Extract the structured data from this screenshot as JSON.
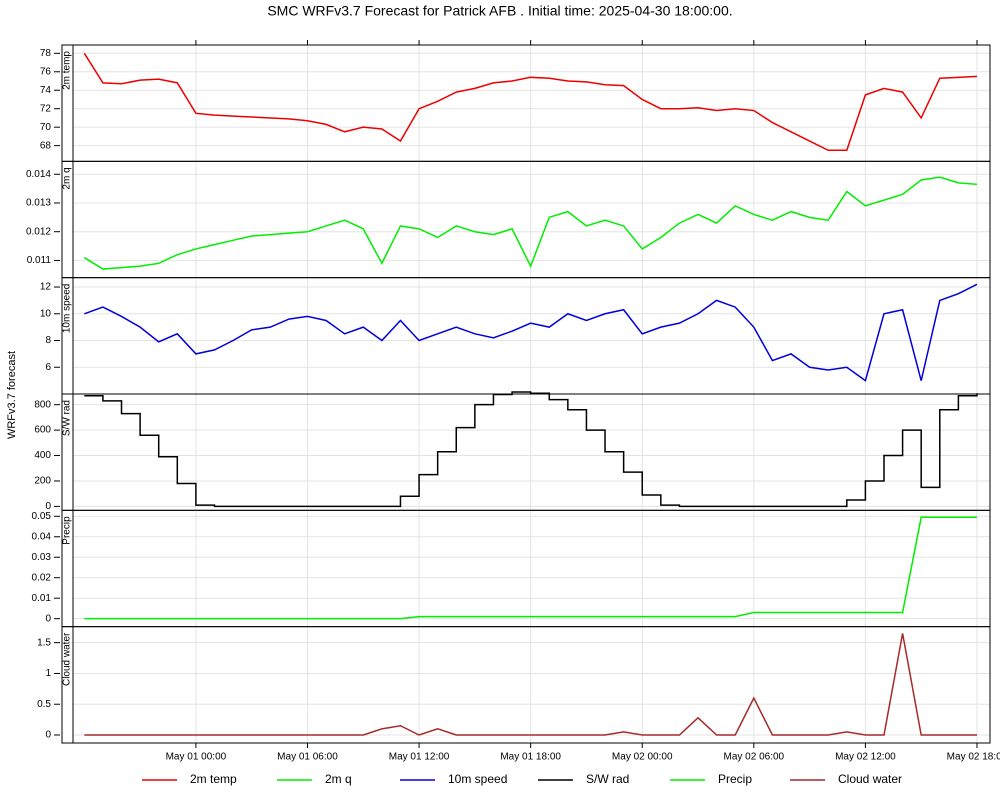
{
  "chart_data": {
    "type": "line",
    "title": "SMC WRFv3.7 Forecast for Patrick AFB            .  Initial time:  2025-04-30 18:00:00.",
    "ylabel": "WRFv3.7 forecast",
    "x": [
      0,
      1,
      2,
      3,
      4,
      5,
      6,
      7,
      8,
      9,
      10,
      11,
      12,
      13,
      14,
      15,
      16,
      17,
      18,
      19,
      20,
      21,
      22,
      23,
      24,
      25,
      26,
      27,
      28,
      29,
      30,
      31,
      32,
      33,
      34,
      35,
      36,
      37,
      38,
      39,
      40,
      41,
      42,
      43,
      44,
      45,
      46,
      47,
      48
    ],
    "xlim": [
      -1.2,
      48.7
    ],
    "xticks": [
      {
        "value": 6,
        "label": "May 01 00:00"
      },
      {
        "value": 12,
        "label": "May 01 06:00"
      },
      {
        "value": 18,
        "label": "May 01 12:00"
      },
      {
        "value": 24,
        "label": "May 01 18:00"
      },
      {
        "value": 30,
        "label": "May 02 00:00"
      },
      {
        "value": 36,
        "label": "May 02 06:00"
      },
      {
        "value": 42,
        "label": "May 02 12:00"
      },
      {
        "value": 48,
        "label": "May 02 18:00"
      }
    ],
    "grid": true,
    "panels": [
      {
        "ylabel": "2m temp",
        "ylim": [
          66.3,
          78.9
        ],
        "yticks": [
          68,
          70,
          72,
          74,
          76,
          78
        ],
        "series": [
          {
            "name": "2m temp",
            "color": "#ee0000",
            "values": [
              78,
              74.8,
              74.7,
              75.1,
              75.2,
              74.8,
              71.5,
              71.3,
              71.2,
              71.1,
              71,
              70.9,
              70.7,
              70.3,
              69.5,
              70,
              69.8,
              68.5,
              72,
              72.8,
              73.8,
              74.2,
              74.8,
              75,
              75.4,
              75.3,
              75,
              74.9,
              74.6,
              74.5,
              73,
              72,
              72,
              72.1,
              71.8,
              72,
              71.8,
              70.5,
              69.5,
              68.5,
              67.5,
              67.5,
              73.5,
              74.2,
              73.8,
              71,
              75.3,
              75.4,
              75.5
            ]
          }
        ]
      },
      {
        "ylabel": "2m q",
        "ylim": [
          0.0104,
          0.01445
        ],
        "yticks": [
          0.011,
          0.012,
          0.013,
          0.014
        ],
        "series": [
          {
            "name": "2m q",
            "color": "#00ee00",
            "values": [
              0.0111,
              0.0107,
              0.01075,
              0.0108,
              0.0109,
              0.0112,
              0.0114,
              0.01155,
              0.0117,
              0.01185,
              0.0119,
              0.01195,
              0.012,
              0.0122,
              0.0124,
              0.0121,
              0.0109,
              0.0122,
              0.0121,
              0.0118,
              0.0122,
              0.012,
              0.0119,
              0.0121,
              0.0108,
              0.0125,
              0.0127,
              0.0122,
              0.0124,
              0.0122,
              0.0114,
              0.0118,
              0.0123,
              0.0126,
              0.0123,
              0.0129,
              0.0126,
              0.0124,
              0.0127,
              0.0125,
              0.0124,
              0.0134,
              0.0129,
              0.0131,
              0.0133,
              0.0138,
              0.0139,
              0.0137,
              0.01365
            ]
          }
        ]
      },
      {
        "ylabel": "10m speed",
        "ylim": [
          4,
          12.7
        ],
        "yticks": [
          6,
          8,
          10,
          12
        ],
        "series": [
          {
            "name": "10m speed",
            "color": "#0000dd",
            "values": [
              10,
              10.5,
              9.8,
              9,
              7.9,
              8.5,
              7,
              7.3,
              8,
              8.8,
              9,
              9.6,
              9.8,
              9.5,
              8.5,
              9,
              8,
              9.5,
              8,
              8.5,
              9,
              8.5,
              8.2,
              8.7,
              9.3,
              9,
              10,
              9.5,
              10,
              10.3,
              8.5,
              9,
              9.3,
              10,
              11,
              10.5,
              9,
              6.5,
              7,
              6,
              5.8,
              6,
              5,
              10,
              10.3,
              5,
              11,
              11.5,
              12.2
            ]
          }
        ]
      },
      {
        "ylabel": "S/W rad",
        "ylim": [
          -31,
          884
        ],
        "yticks": [
          0,
          200,
          400,
          600,
          800
        ],
        "series": [
          {
            "name": "S/W rad",
            "color": "#000000",
            "drawstyle": "steps",
            "values": [
              870,
              830,
              730,
              560,
              390,
              180,
              10,
              0,
              0,
              0,
              0,
              0,
              0,
              0,
              0,
              0,
              0,
              80,
              250,
              430,
              620,
              800,
              880,
              900,
              890,
              840,
              760,
              600,
              430,
              270,
              90,
              10,
              0,
              0,
              0,
              0,
              0,
              0,
              0,
              0,
              0,
              50,
              200,
              400,
              600,
              150,
              760,
              870,
              890
            ]
          }
        ]
      },
      {
        "ylabel": "Precip",
        "ylim": [
          -0.0039,
          0.0529
        ],
        "yticks": [
          0.0,
          0.01,
          0.02,
          0.03,
          0.04,
          0.05
        ],
        "series": [
          {
            "name": "Precip",
            "color": "#00ee00",
            "values": [
              0,
              0,
              0,
              0,
              0,
              0,
              0,
              0,
              0,
              0,
              0,
              0,
              0,
              0,
              0,
              0,
              0,
              0,
              0.001,
              0.001,
              0.001,
              0.001,
              0.001,
              0.001,
              0.001,
              0.001,
              0.001,
              0.001,
              0.001,
              0.001,
              0.001,
              0.001,
              0.001,
              0.001,
              0.001,
              0.001,
              0.003,
              0.003,
              0.003,
              0.003,
              0.003,
              0.003,
              0.003,
              0.003,
              0.003,
              0.0495,
              0.0495,
              0.0495,
              0.0495
            ]
          }
        ]
      },
      {
        "ylabel": "Cloud water",
        "ylim": [
          -0.13,
          1.76
        ],
        "yticks": [
          0.0,
          0.5,
          1.0,
          1.5
        ],
        "series": [
          {
            "name": "Cloud water",
            "color": "#a52a2a",
            "values": [
              0,
              0,
              0,
              0,
              0,
              0,
              0,
              0,
              0,
              0,
              0,
              0,
              0,
              0,
              0,
              0,
              0.1,
              0.15,
              0,
              0.1,
              0,
              0,
              0,
              0,
              0,
              0,
              0,
              0,
              0,
              0.05,
              0,
              0,
              0,
              0.28,
              0,
              0,
              0.6,
              0,
              0,
              0,
              0,
              0.05,
              0,
              0,
              1.65,
              0,
              0,
              0,
              0
            ]
          }
        ]
      }
    ]
  }
}
